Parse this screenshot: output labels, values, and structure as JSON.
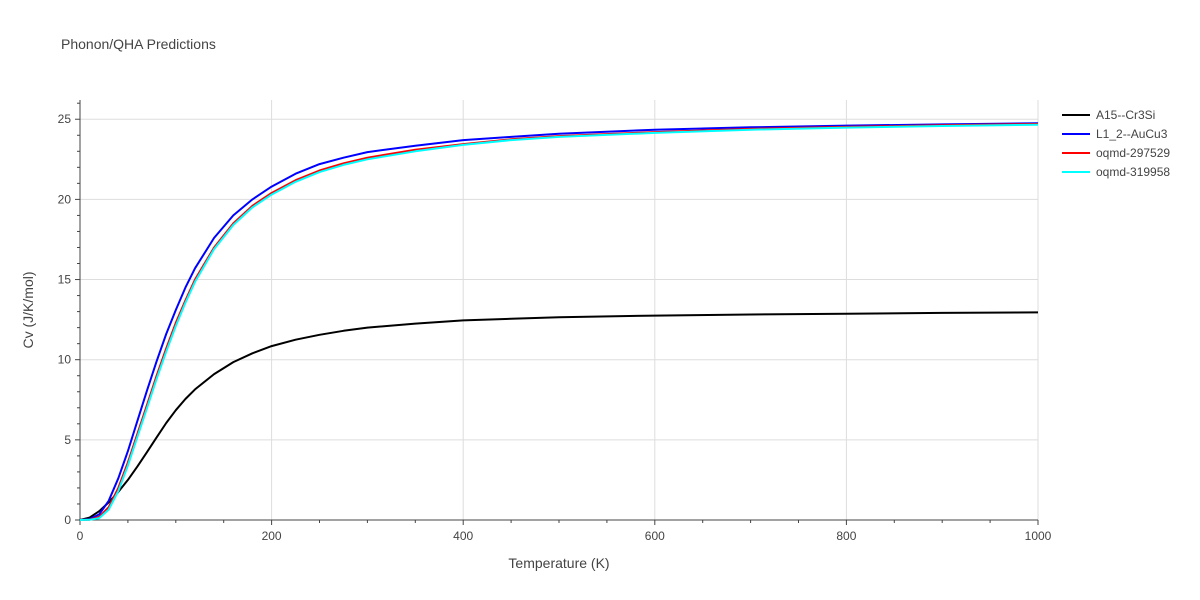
{
  "chart_data": {
    "type": "line",
    "title": "Phonon/QHA Predictions",
    "xlabel": "Temperature (K)",
    "ylabel": "Cv (J/K/mol)",
    "xlim": [
      0,
      1000
    ],
    "ylim": [
      0,
      26.2
    ],
    "xticks": [
      0,
      200,
      400,
      600,
      800,
      1000
    ],
    "yticks": [
      0,
      5,
      10,
      15,
      20,
      25
    ],
    "grid": true,
    "legend_position": "top-right",
    "series": [
      {
        "name": "A15--Cr3Si",
        "color": "#000000",
        "x": [
          0,
          10,
          20,
          30,
          40,
          50,
          60,
          70,
          80,
          90,
          100,
          110,
          120,
          140,
          160,
          180,
          200,
          225,
          250,
          275,
          300,
          350,
          400,
          450,
          500,
          600,
          700,
          800,
          900,
          1000
        ],
        "y": [
          0,
          0.15,
          0.55,
          1.1,
          1.75,
          2.5,
          3.35,
          4.25,
          5.15,
          6.05,
          6.85,
          7.55,
          8.15,
          9.1,
          9.85,
          10.4,
          10.85,
          11.25,
          11.55,
          11.8,
          12.0,
          12.25,
          12.45,
          12.55,
          12.65,
          12.75,
          12.82,
          12.87,
          12.92,
          12.95
        ]
      },
      {
        "name": "L1_2--AuCu3",
        "color": "#0000ff",
        "x": [
          0,
          10,
          20,
          30,
          40,
          50,
          60,
          70,
          80,
          90,
          100,
          110,
          120,
          140,
          160,
          180,
          200,
          225,
          250,
          275,
          300,
          350,
          400,
          450,
          500,
          600,
          700,
          800,
          900,
          1000
        ],
        "y": [
          0,
          0.05,
          0.35,
          1.2,
          2.6,
          4.3,
          6.2,
          8.1,
          9.9,
          11.6,
          13.1,
          14.5,
          15.7,
          17.6,
          19.0,
          20.0,
          20.8,
          21.6,
          22.2,
          22.6,
          22.95,
          23.35,
          23.7,
          23.9,
          24.1,
          24.35,
          24.5,
          24.6,
          24.68,
          24.75
        ]
      },
      {
        "name": "oqmd-297529",
        "color": "#ff0000",
        "x": [
          0,
          10,
          20,
          30,
          40,
          50,
          60,
          70,
          80,
          90,
          100,
          110,
          120,
          140,
          160,
          180,
          200,
          225,
          250,
          275,
          300,
          350,
          400,
          450,
          500,
          600,
          700,
          800,
          900,
          1000
        ],
        "y": [
          0,
          0.02,
          0.2,
          0.8,
          2.0,
          3.6,
          5.4,
          7.2,
          9.0,
          10.7,
          12.3,
          13.7,
          15.0,
          17.0,
          18.5,
          19.6,
          20.4,
          21.2,
          21.8,
          22.25,
          22.6,
          23.1,
          23.45,
          23.75,
          23.95,
          24.2,
          24.4,
          24.52,
          24.62,
          24.7
        ]
      },
      {
        "name": "oqmd-319958",
        "color": "#00ffff",
        "x": [
          0,
          10,
          20,
          30,
          40,
          50,
          60,
          70,
          80,
          90,
          100,
          110,
          120,
          140,
          160,
          180,
          200,
          225,
          250,
          275,
          300,
          350,
          400,
          450,
          500,
          600,
          700,
          800,
          900,
          1000
        ],
        "y": [
          0,
          0.01,
          0.12,
          0.65,
          1.8,
          3.4,
          5.2,
          7.0,
          8.8,
          10.5,
          12.1,
          13.55,
          14.85,
          16.9,
          18.4,
          19.5,
          20.3,
          21.1,
          21.7,
          22.15,
          22.5,
          23.0,
          23.4,
          23.7,
          23.9,
          24.15,
          24.35,
          24.48,
          24.58,
          24.66
        ]
      }
    ]
  }
}
